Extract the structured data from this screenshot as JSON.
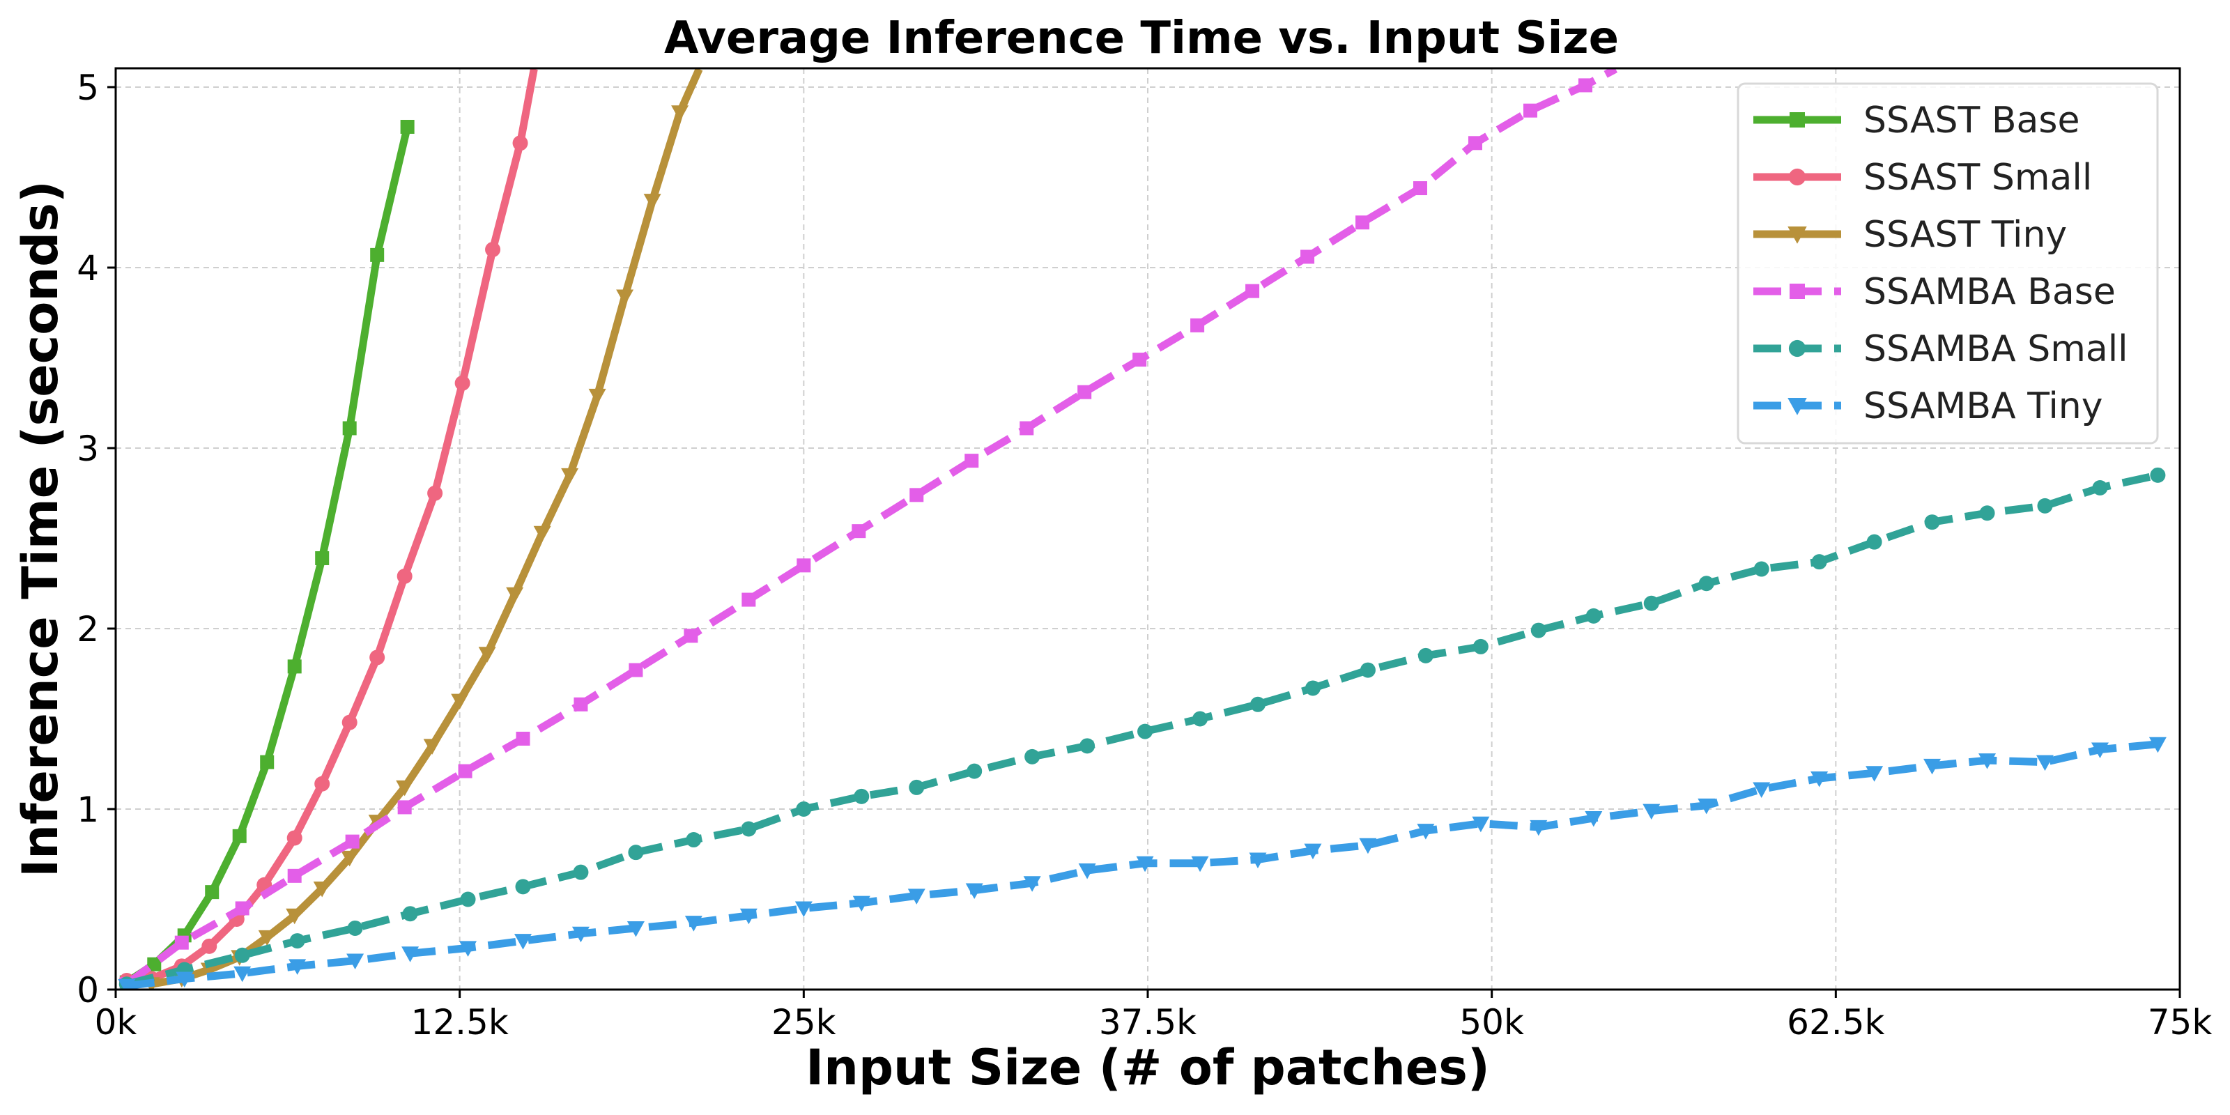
{
  "chart_data": {
    "type": "line",
    "title": "Average Inference Time vs. Input Size",
    "xlabel": "Input Size (# of  patches)",
    "ylabel": "Inference Time (seconds)",
    "xlim": [
      0,
      75000
    ],
    "ylim": [
      0,
      5.1
    ],
    "xticks": [
      0,
      12500,
      25000,
      37500,
      50000,
      62500,
      75000
    ],
    "xtick_labels": [
      "0k",
      "12.5k",
      "25k",
      "37.5k",
      "50k",
      "62.5k",
      "75k"
    ],
    "yticks": [
      0,
      1,
      2,
      3,
      4,
      5
    ],
    "ytick_labels": [
      "0",
      "1",
      "2",
      "3",
      "4",
      "5"
    ],
    "grid": true,
    "legend_position": "top-right",
    "series": [
      {
        "name": "SSAST Base",
        "color": "#4daf2f",
        "dash": "solid",
        "marker": "square",
        "x": [
          400,
          1400,
          2500,
          3500,
          4500,
          5500,
          6500,
          7500,
          8500,
          9500,
          10600
        ],
        "y": [
          0.04,
          0.14,
          0.3,
          0.54,
          0.85,
          1.26,
          1.79,
          2.39,
          3.11,
          4.07,
          4.78
        ]
      },
      {
        "name": "SSAST Small",
        "color": "#ef6680",
        "dash": "solid",
        "marker": "circle",
        "x": [
          400,
          1300,
          2400,
          3400,
          4400,
          5400,
          6500,
          7500,
          8500,
          9500,
          10500,
          11600,
          12600,
          13700,
          14700,
          15200
        ],
        "y": [
          0.05,
          0.06,
          0.13,
          0.24,
          0.39,
          0.58,
          0.84,
          1.14,
          1.48,
          1.84,
          2.29,
          2.75,
          3.36,
          4.1,
          4.69,
          5.1
        ]
      },
      {
        "name": "SSAST Tiny",
        "color": "#b8913a",
        "dash": "solid",
        "marker": "triangle",
        "x": [
          1300,
          2400,
          3400,
          4500,
          5500,
          6500,
          7500,
          8500,
          9500,
          10500,
          11500,
          12500,
          13500,
          14500,
          15500,
          16500,
          17500,
          18500,
          19500,
          20500,
          21200
        ],
        "y": [
          0.03,
          0.06,
          0.11,
          0.18,
          0.29,
          0.41,
          0.56,
          0.73,
          0.93,
          1.12,
          1.35,
          1.6,
          1.86,
          2.19,
          2.53,
          2.85,
          3.29,
          3.84,
          4.37,
          4.86,
          5.1
        ]
      },
      {
        "name": "SSAMBA Base",
        "color": "#e35ee8",
        "dash": "dashed",
        "marker": "square",
        "x": [
          400,
          2400,
          4600,
          6500,
          8600,
          10500,
          12700,
          14800,
          16900,
          18900,
          20900,
          23000,
          25000,
          27000,
          29100,
          31100,
          33100,
          35200,
          37200,
          39300,
          41300,
          43300,
          45300,
          47400,
          49400,
          51400,
          53400,
          54500
        ],
        "y": [
          0.03,
          0.26,
          0.45,
          0.63,
          0.82,
          1.01,
          1.21,
          1.39,
          1.58,
          1.77,
          1.96,
          2.16,
          2.35,
          2.54,
          2.74,
          2.93,
          3.11,
          3.31,
          3.49,
          3.68,
          3.87,
          4.06,
          4.25,
          4.44,
          4.69,
          4.87,
          5.01,
          5.1
        ]
      },
      {
        "name": "SSAMBA Small",
        "color": "#31a397",
        "dash": "dashed",
        "marker": "circle",
        "x": [
          400,
          2500,
          4600,
          6600,
          8700,
          10700,
          12800,
          14800,
          16900,
          18900,
          21000,
          23000,
          25000,
          27100,
          29100,
          31200,
          33300,
          35300,
          37400,
          39400,
          41500,
          43500,
          45500,
          47600,
          49600,
          51700,
          53700,
          55800,
          57800,
          59800,
          61900,
          63900,
          66000,
          68000,
          70100,
          72100,
          74200
        ],
        "y": [
          0.03,
          0.11,
          0.19,
          0.27,
          0.34,
          0.42,
          0.5,
          0.57,
          0.65,
          0.76,
          0.83,
          0.89,
          1.0,
          1.07,
          1.12,
          1.21,
          1.29,
          1.35,
          1.43,
          1.5,
          1.58,
          1.67,
          1.77,
          1.85,
          1.9,
          1.99,
          2.07,
          2.14,
          2.25,
          2.33,
          2.37,
          2.48,
          2.59,
          2.64,
          2.68,
          2.78,
          2.85
        ]
      },
      {
        "name": "SSAMBA Tiny",
        "color": "#3a9de6",
        "dash": "dashed",
        "marker": "triangle",
        "x": [
          400,
          2500,
          4600,
          6600,
          8700,
          10700,
          12800,
          14800,
          16900,
          18900,
          21000,
          23000,
          25000,
          27100,
          29100,
          31200,
          33300,
          35300,
          37400,
          39400,
          41500,
          43500,
          45500,
          47600,
          49600,
          51700,
          53700,
          55800,
          57800,
          59800,
          61900,
          63900,
          66000,
          68000,
          70100,
          72100,
          74200
        ],
        "y": [
          0.02,
          0.06,
          0.09,
          0.13,
          0.16,
          0.2,
          0.23,
          0.27,
          0.31,
          0.34,
          0.37,
          0.41,
          0.45,
          0.48,
          0.52,
          0.55,
          0.59,
          0.66,
          0.7,
          0.7,
          0.72,
          0.77,
          0.8,
          0.88,
          0.92,
          0.9,
          0.95,
          0.99,
          1.02,
          1.11,
          1.17,
          1.2,
          1.24,
          1.27,
          1.26,
          1.33,
          1.36
        ]
      }
    ]
  }
}
